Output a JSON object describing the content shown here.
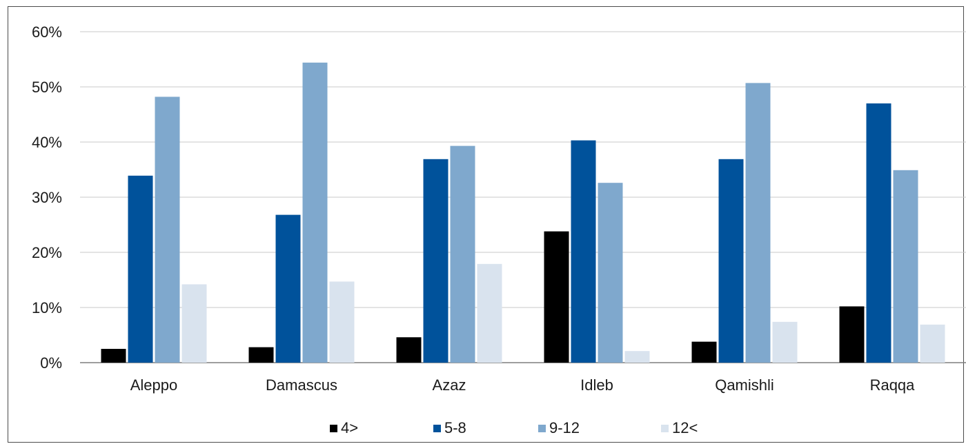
{
  "title": "",
  "chart_data": {
    "type": "bar",
    "categories": [
      "Aleppo",
      "Damascus",
      "Azaz",
      "Idleb",
      "Qamishli",
      "Raqqa"
    ],
    "series": [
      {
        "name": "4>",
        "color": "#000000",
        "values": [
          2.5,
          2.8,
          4.6,
          23.8,
          3.8,
          10.2
        ]
      },
      {
        "name": "5-8",
        "color": "#00529b",
        "values": [
          33.9,
          26.8,
          36.9,
          40.3,
          36.9,
          47.0
        ]
      },
      {
        "name": "9-12",
        "color": "#7fa8cd",
        "values": [
          48.2,
          54.4,
          39.3,
          32.6,
          50.7,
          34.9
        ]
      },
      {
        "name": "12<",
        "color": "#d9e3ee",
        "values": [
          14.2,
          14.7,
          17.9,
          2.1,
          7.4,
          6.9
        ]
      }
    ],
    "ylim": [
      0,
      60
    ],
    "yticks": [
      0,
      10,
      20,
      30,
      40,
      50,
      60
    ],
    "ytick_labels": [
      "0%",
      "10%",
      "20%",
      "30%",
      "40%",
      "50%",
      "60%"
    ],
    "grid": true,
    "legend_position": "bottom-center"
  }
}
